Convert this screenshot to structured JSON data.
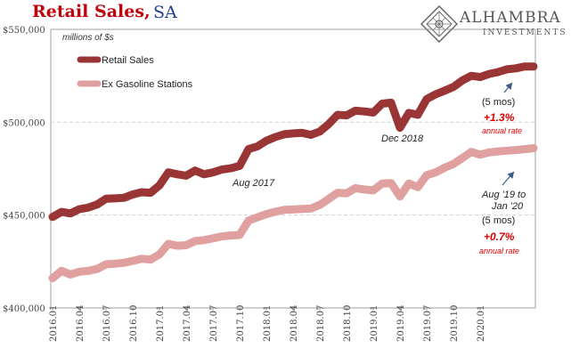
{
  "title": {
    "main": "Retail Sales,",
    "suffix": "SA"
  },
  "brand": {
    "name": "ALHAMBRA",
    "sub": "INVESTMENTS"
  },
  "colors": {
    "title": "#c0000a",
    "suffix": "#1f3f8f",
    "series_primary": "#9a3535",
    "series_secondary": "#e0a0a0",
    "annotation_red": "#e00000",
    "arrow": "#3a5e88",
    "grid": "#cccccc"
  },
  "chart_data": {
    "type": "line",
    "units_label": "millions of $s",
    "xlabel": "",
    "ylabel": "",
    "ylim": [
      400000,
      550000
    ],
    "yticks": [
      "$400,000",
      "$450,000",
      "$500,000",
      "$550,000"
    ],
    "ytick_values": [
      400000,
      450000,
      500000,
      550000
    ],
    "xtick_labels": [
      "2016.01",
      "2016.04",
      "2016.07",
      "2016.10",
      "2017.01",
      "2017.04",
      "2017.07",
      "2017.10",
      "2018.01",
      "2018.04",
      "2018.07",
      "2018.10",
      "2019.01",
      "2019.04",
      "2019.07",
      "2019.10",
      "2020.01"
    ],
    "grid": "horizontal dashed",
    "legend_position": "top-left",
    "series": [
      {
        "name": "Retail Sales",
        "values": [
          449000,
          451700,
          450900,
          453200,
          454000,
          455700,
          458800,
          459000,
          459300,
          461100,
          462300,
          462000,
          466000,
          473000,
          472000,
          471200,
          474000,
          472000,
          473000,
          474500,
          475200,
          476500,
          485500,
          487000,
          490000,
          492000,
          493500,
          494000,
          494300,
          493200,
          495000,
          499000,
          504000,
          503700,
          506200,
          505800,
          505200,
          510000,
          510500,
          497000,
          505000,
          504000,
          512500,
          515000,
          517000,
          519000,
          522500,
          525000,
          524300,
          526000,
          527000,
          528500,
          529000,
          530000,
          530000
        ],
        "color": "#9a3535"
      },
      {
        "name": "Ex Gasoline Stations",
        "values": [
          416000,
          420000,
          418000,
          419500,
          420000,
          421000,
          423500,
          423800,
          424300,
          425300,
          426500,
          426000,
          428800,
          434500,
          433500,
          433800,
          436000,
          436500,
          437500,
          438500,
          439000,
          439300,
          447000,
          448800,
          450500,
          451800,
          452800,
          453000,
          453300,
          453500,
          455500,
          458700,
          462000,
          461700,
          464500,
          463800,
          463300,
          467000,
          467200,
          460000,
          467000,
          465000,
          471500,
          473000,
          475500,
          477500,
          480700,
          484000,
          482500,
          483700,
          484300,
          484700,
          485000,
          485500,
          486000
        ],
        "color": "#e0a0a0"
      }
    ],
    "annotations": [
      {
        "text": "Aug 2017",
        "style": "italic"
      },
      {
        "text": "Dec 2018",
        "style": "italic"
      },
      {
        "text": "(5 mos)",
        "style": "normal"
      },
      {
        "text": "+1.3%",
        "style": "bold-italic-red"
      },
      {
        "text": "annual rate",
        "style": "italic-red-small"
      },
      {
        "text": "Aug '19 to",
        "style": "italic"
      },
      {
        "text": "Jan '20",
        "style": "italic"
      },
      {
        "text": "(5 mos)",
        "style": "normal"
      },
      {
        "text": "+0.7%",
        "style": "bold-italic-red"
      },
      {
        "text": "annual rate",
        "style": "italic-red-small"
      }
    ]
  }
}
